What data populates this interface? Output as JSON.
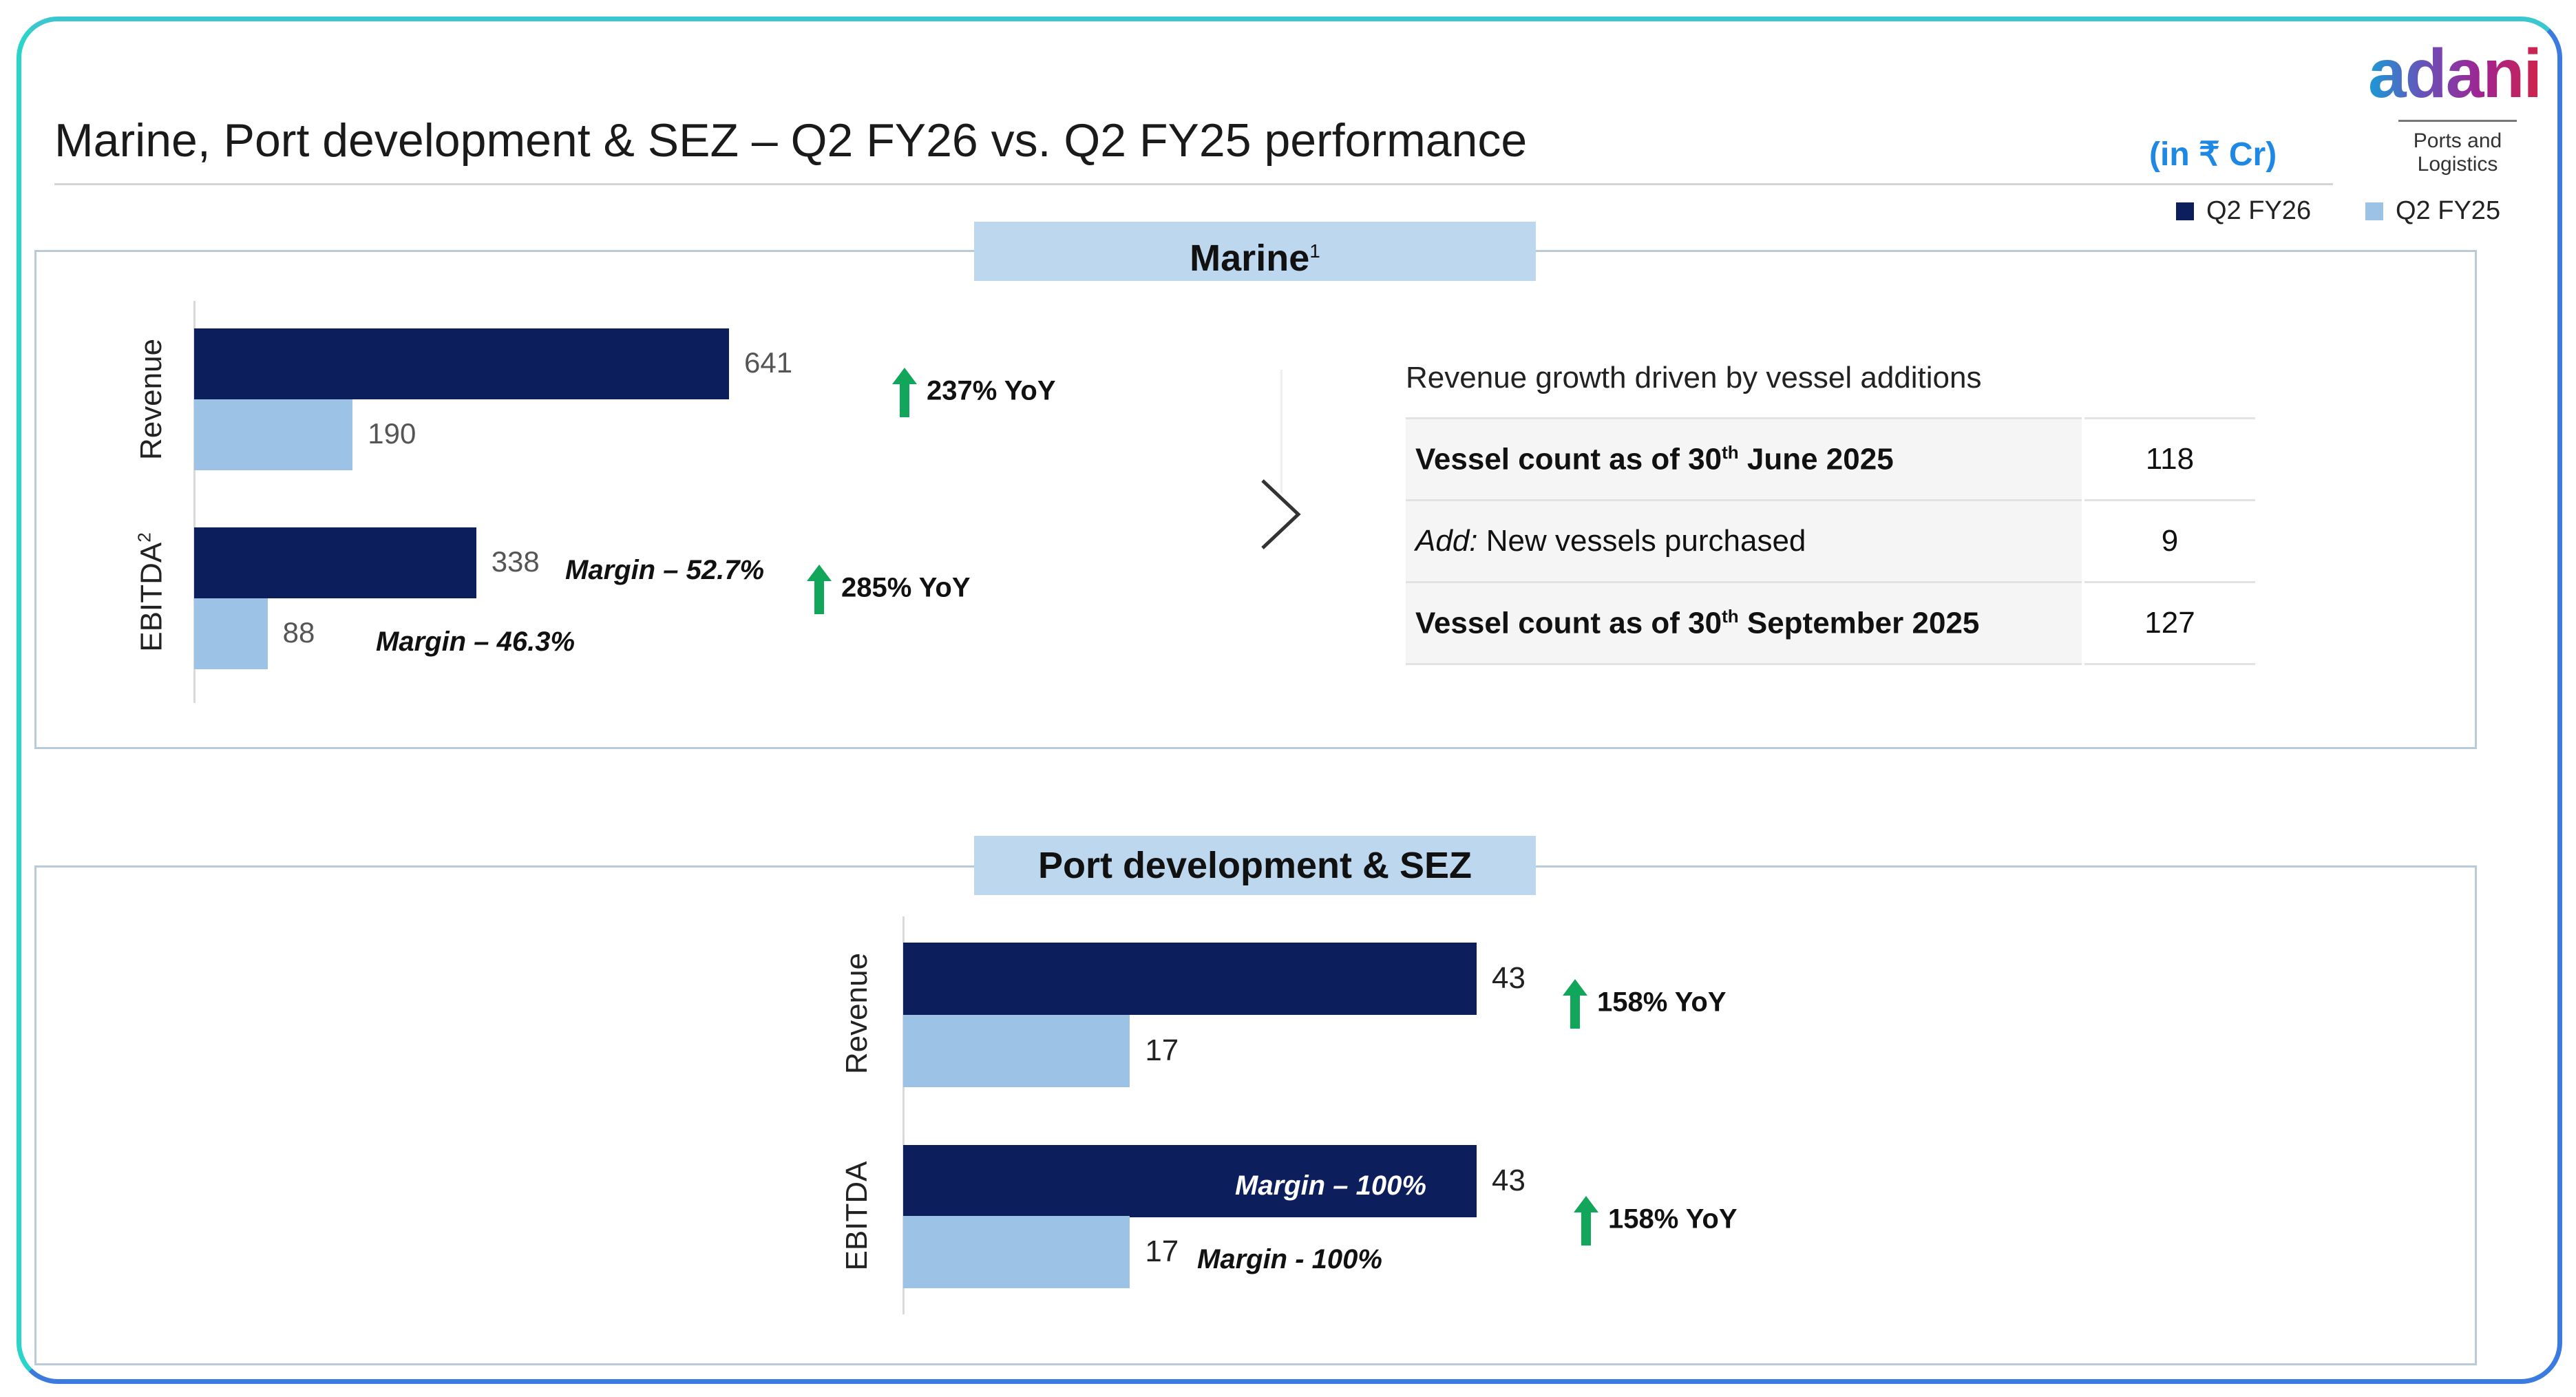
{
  "header": {
    "title": "Marine, Port development & SEZ – Q2 FY26 vs. Q2 FY25 performance",
    "unit": "(in ₹ Cr)",
    "logo": "adani",
    "logo_sub": "Ports and Logistics"
  },
  "legend": [
    {
      "label": "Q2 FY26",
      "color": "#0c1f5c"
    },
    {
      "label": "Q2 FY25",
      "color": "#9cc3e6"
    }
  ],
  "marine": {
    "title": "Marine",
    "title_sup": "1",
    "note": "Revenue growth driven by vessel additions",
    "table": [
      {
        "pre": "Vessel count as of 30",
        "sup": "th",
        "post": " June 2025",
        "value": "118"
      },
      {
        "italic": "Add:",
        "post": " New vessels purchased",
        "value": "9"
      },
      {
        "pre": "Vessel count as of 30",
        "sup": "th",
        "post": " September 2025",
        "value": "127"
      }
    ]
  },
  "port": {
    "title": "Port development & SEZ"
  },
  "chart_data": [
    {
      "type": "bar",
      "orientation": "horizontal",
      "title": "Marine",
      "categories": [
        "Revenue",
        "EBITDA"
      ],
      "category_sup": [
        "",
        "2"
      ],
      "series": [
        {
          "name": "Q2 FY26",
          "values": [
            641,
            338
          ]
        },
        {
          "name": "Q2 FY25",
          "values": [
            190,
            88
          ]
        }
      ],
      "yoy": [
        "237% YoY",
        "285% YoY"
      ],
      "margins": {
        "Q2 FY26": "Margin – 52.7%",
        "Q2 FY25": "Margin – 46.3%"
      },
      "xlim": [
        0,
        641
      ]
    },
    {
      "type": "bar",
      "orientation": "horizontal",
      "title": "Port development & SEZ",
      "categories": [
        "Revenue",
        "EBITDA"
      ],
      "series": [
        {
          "name": "Q2 FY26",
          "values": [
            43,
            43
          ]
        },
        {
          "name": "Q2 FY25",
          "values": [
            17,
            17
          ]
        }
      ],
      "yoy": [
        "158% YoY",
        "158% YoY"
      ],
      "margins": {
        "Q2 FY26": "Margin – 100%",
        "Q2 FY25": "Margin -  100%"
      },
      "xlim": [
        0,
        43
      ]
    }
  ]
}
